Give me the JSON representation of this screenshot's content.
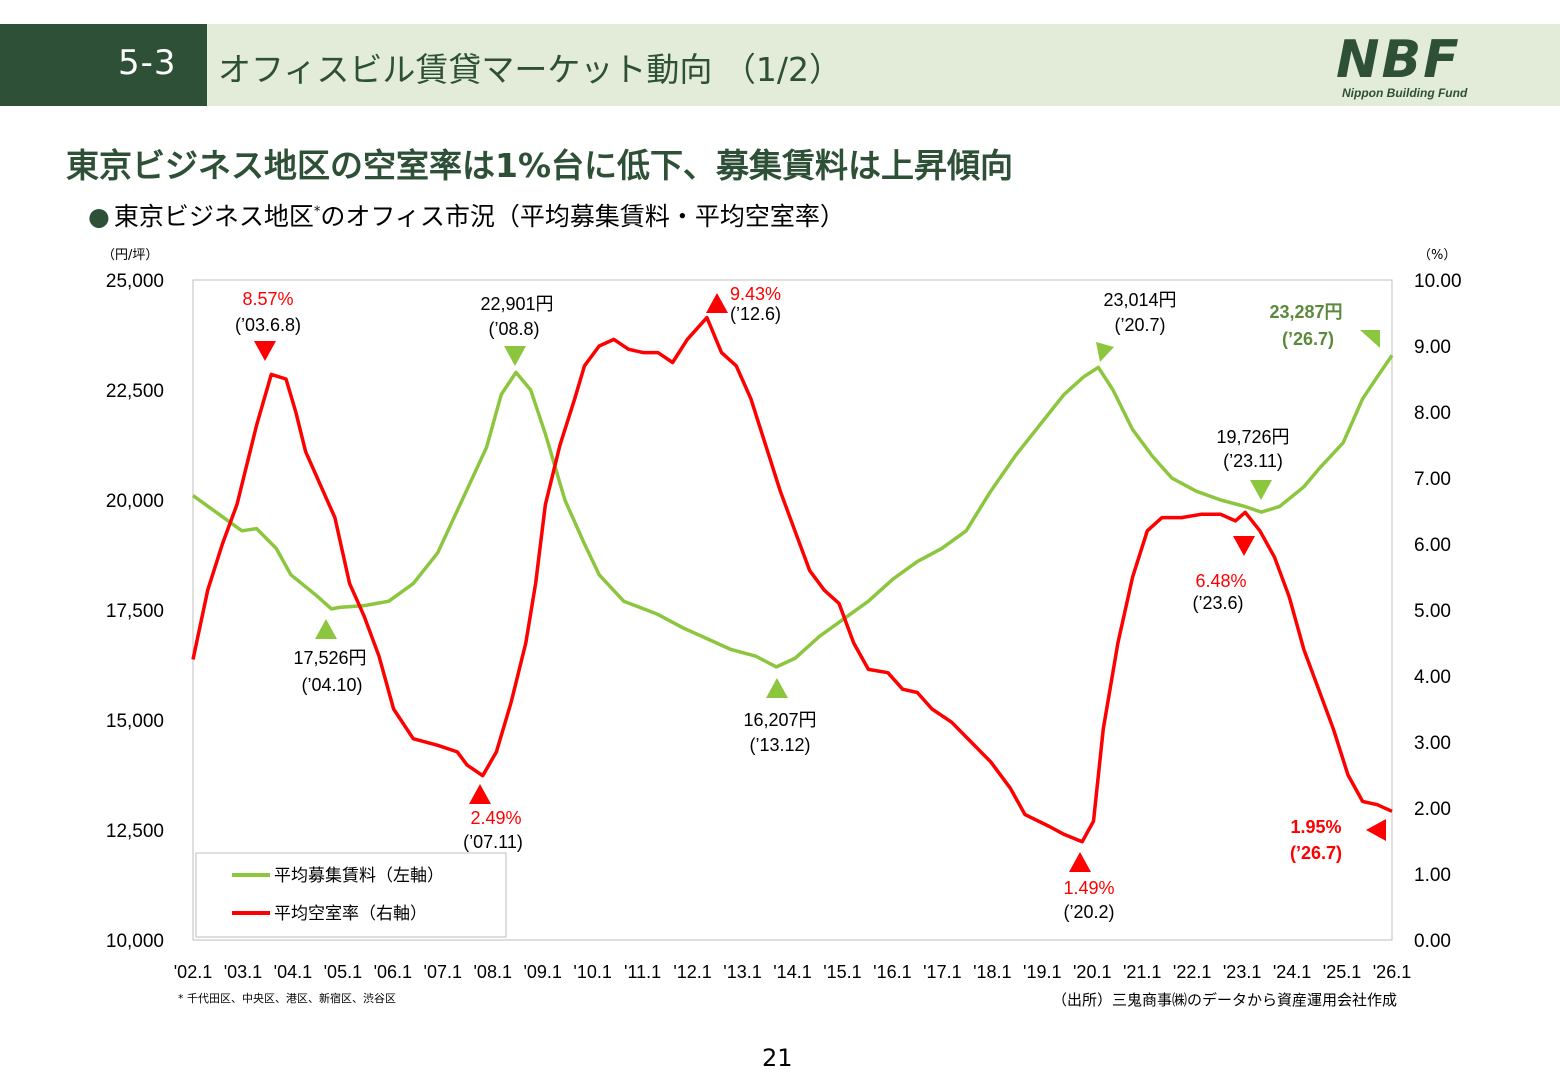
{
  "header": {
    "section": "5-3",
    "title": "オフィスビル賃貸マーケット動向 （1/2）",
    "logo_main": "NBF",
    "logo_sub": "Nippon Building Fund"
  },
  "headline": "東京ビジネス地区の空室率は1%台に低下、募集賃料は上昇傾向",
  "subheadline": {
    "bullet": "●",
    "text_before": "東京ビジネス地区",
    "sup": "*",
    "text_after": "のオフィス市況（平均募集賃料・平均空室率）"
  },
  "footnote": "* 千代田区、中央区、港区、新宿区、渋谷区",
  "source": "（出所）三鬼商事㈱のデータから資産運用会社作成",
  "page_number": "21",
  "colors": {
    "rent": "#8cc63f",
    "vacancy": "#ff0000",
    "rent_bold": "#5b8a3c",
    "dark_green": "#2d5036",
    "header_bg": "#e3ecd8"
  },
  "chart_data": {
    "type": "line",
    "x_categories": [
      "'02.1",
      "'03.1",
      "'04.1",
      "'05.1",
      "'06.1",
      "'07.1",
      "'08.1",
      "'09.1",
      "'10.1",
      "'11.1",
      "'12.1",
      "'13.1",
      "'14.1",
      "'15.1",
      "'16.1",
      "'17.1",
      "'18.1",
      "'19.1",
      "'20.1",
      "'21.1",
      "'22.1",
      "'23.1",
      "'24.1",
      "'25.1",
      "'26.1"
    ],
    "left_axis": {
      "unit": "（円/坪）",
      "ylim": [
        10000,
        25000
      ],
      "ticks": [
        "10,000",
        "12,500",
        "15,000",
        "17,500",
        "20,000",
        "22,500",
        "25,000"
      ]
    },
    "right_axis": {
      "unit": "（%）",
      "ylim": [
        0,
        10
      ],
      "ticks": [
        "0.00",
        "1.00",
        "2.00",
        "3.00",
        "4.00",
        "5.00",
        "6.00",
        "7.00",
        "8.00",
        "9.00",
        "10.00"
      ]
    },
    "legend": {
      "placement": "bottom-left",
      "rent_label": "平均募集賃料（左軸）",
      "vacancy_label": "平均空室率（右軸）"
    },
    "series": [
      {
        "name": "平均募集賃料（左軸）",
        "axis": "left",
        "points": [
          [
            2002.0,
            20100
          ],
          [
            2002.5,
            19700
          ],
          [
            2003.0,
            19300
          ],
          [
            2003.3,
            19350
          ],
          [
            2003.7,
            18900
          ],
          [
            2004.0,
            18300
          ],
          [
            2004.5,
            17850
          ],
          [
            2004.83,
            17526
          ],
          [
            2005.0,
            17560
          ],
          [
            2005.5,
            17600
          ],
          [
            2006.0,
            17700
          ],
          [
            2006.5,
            18100
          ],
          [
            2007.0,
            18800
          ],
          [
            2007.5,
            20000
          ],
          [
            2008.0,
            21200
          ],
          [
            2008.3,
            22400
          ],
          [
            2008.6,
            22901
          ],
          [
            2008.9,
            22500
          ],
          [
            2009.2,
            21500
          ],
          [
            2009.6,
            20000
          ],
          [
            2010.0,
            19000
          ],
          [
            2010.3,
            18300
          ],
          [
            2010.8,
            17700
          ],
          [
            2011.5,
            17400
          ],
          [
            2012.0,
            17100
          ],
          [
            2012.5,
            16850
          ],
          [
            2013.0,
            16600
          ],
          [
            2013.5,
            16450
          ],
          [
            2013.92,
            16207
          ],
          [
            2014.3,
            16400
          ],
          [
            2014.8,
            16900
          ],
          [
            2015.3,
            17300
          ],
          [
            2015.8,
            17700
          ],
          [
            2016.3,
            18200
          ],
          [
            2016.8,
            18600
          ],
          [
            2017.3,
            18900
          ],
          [
            2017.8,
            19300
          ],
          [
            2018.3,
            20200
          ],
          [
            2018.8,
            21000
          ],
          [
            2019.3,
            21700
          ],
          [
            2019.8,
            22400
          ],
          [
            2020.2,
            22800
          ],
          [
            2020.5,
            23014
          ],
          [
            2020.8,
            22500
          ],
          [
            2021.2,
            21600
          ],
          [
            2021.6,
            21000
          ],
          [
            2022.0,
            20500
          ],
          [
            2022.5,
            20200
          ],
          [
            2023.0,
            20000
          ],
          [
            2023.5,
            19850
          ],
          [
            2023.83,
            19726
          ],
          [
            2024.2,
            19850
          ],
          [
            2024.7,
            20300
          ],
          [
            2025.0,
            20700
          ],
          [
            2025.5,
            21300
          ],
          [
            2025.9,
            22300
          ],
          [
            2026.2,
            22800
          ],
          [
            2026.5,
            23287
          ]
        ]
      },
      {
        "name": "平均空室率（右軸）",
        "axis": "right",
        "points": [
          [
            2002.0,
            4.25
          ],
          [
            2002.3,
            5.3
          ],
          [
            2002.6,
            6.0
          ],
          [
            2002.9,
            6.6
          ],
          [
            2003.1,
            7.2
          ],
          [
            2003.3,
            7.8
          ],
          [
            2003.6,
            8.57
          ],
          [
            2003.9,
            8.5
          ],
          [
            2004.1,
            8.0
          ],
          [
            2004.3,
            7.4
          ],
          [
            2004.6,
            6.9
          ],
          [
            2004.9,
            6.4
          ],
          [
            2005.2,
            5.4
          ],
          [
            2005.5,
            4.9
          ],
          [
            2005.8,
            4.3
          ],
          [
            2006.1,
            3.5
          ],
          [
            2006.5,
            3.05
          ],
          [
            2007.0,
            2.95
          ],
          [
            2007.4,
            2.85
          ],
          [
            2007.6,
            2.65
          ],
          [
            2007.92,
            2.49
          ],
          [
            2008.2,
            2.85
          ],
          [
            2008.5,
            3.6
          ],
          [
            2008.8,
            4.5
          ],
          [
            2009.0,
            5.4
          ],
          [
            2009.2,
            6.6
          ],
          [
            2009.5,
            7.5
          ],
          [
            2009.8,
            8.2
          ],
          [
            2010.0,
            8.7
          ],
          [
            2010.3,
            9.0
          ],
          [
            2010.6,
            9.1
          ],
          [
            2010.9,
            8.95
          ],
          [
            2011.2,
            8.9
          ],
          [
            2011.5,
            8.9
          ],
          [
            2011.8,
            8.75
          ],
          [
            2012.1,
            9.1
          ],
          [
            2012.5,
            9.43
          ],
          [
            2012.8,
            8.9
          ],
          [
            2013.1,
            8.7
          ],
          [
            2013.4,
            8.2
          ],
          [
            2013.7,
            7.5
          ],
          [
            2014.0,
            6.8
          ],
          [
            2014.3,
            6.2
          ],
          [
            2014.6,
            5.6
          ],
          [
            2014.9,
            5.3
          ],
          [
            2015.2,
            5.1
          ],
          [
            2015.5,
            4.5
          ],
          [
            2015.8,
            4.1
          ],
          [
            2016.2,
            4.05
          ],
          [
            2016.5,
            3.8
          ],
          [
            2016.8,
            3.75
          ],
          [
            2017.1,
            3.5
          ],
          [
            2017.5,
            3.3
          ],
          [
            2017.9,
            3.0
          ],
          [
            2018.3,
            2.7
          ],
          [
            2018.7,
            2.3
          ],
          [
            2019.0,
            1.9
          ],
          [
            2019.5,
            1.72
          ],
          [
            2019.8,
            1.6
          ],
          [
            2020.17,
            1.49
          ],
          [
            2020.4,
            1.8
          ],
          [
            2020.6,
            3.2
          ],
          [
            2020.9,
            4.5
          ],
          [
            2021.2,
            5.5
          ],
          [
            2021.5,
            6.2
          ],
          [
            2021.8,
            6.4
          ],
          [
            2022.2,
            6.4
          ],
          [
            2022.6,
            6.45
          ],
          [
            2023.0,
            6.45
          ],
          [
            2023.3,
            6.35
          ],
          [
            2023.5,
            6.48
          ],
          [
            2023.8,
            6.2
          ],
          [
            2024.1,
            5.8
          ],
          [
            2024.4,
            5.2
          ],
          [
            2024.7,
            4.4
          ],
          [
            2025.0,
            3.8
          ],
          [
            2025.3,
            3.2
          ],
          [
            2025.6,
            2.5
          ],
          [
            2025.9,
            2.1
          ],
          [
            2026.2,
            2.05
          ],
          [
            2026.5,
            1.95
          ]
        ]
      }
    ],
    "annotations": [
      {
        "series": "vacancy",
        "value": "8.57%",
        "date": "(’03.6.8)",
        "x": 2003.6,
        "y": 8.57,
        "marker": "down"
      },
      {
        "series": "vacancy",
        "value": "2.49%",
        "date": "(’07.11)",
        "x": 2007.92,
        "y": 2.49,
        "marker": "up"
      },
      {
        "series": "vacancy",
        "value": "9.43%",
        "date": "(’12.6)",
        "x": 2012.5,
        "y": 9.43,
        "marker": "up"
      },
      {
        "series": "vacancy",
        "value": "1.49%",
        "date": "(’20.2)",
        "x": 2020.17,
        "y": 1.49,
        "marker": "up"
      },
      {
        "series": "vacancy",
        "value": "6.48%",
        "date": "(’23.6)",
        "x": 2023.5,
        "y": 6.48,
        "marker": "down"
      },
      {
        "series": "vacancy",
        "value": "1.95%",
        "date": "(’26.7)",
        "x": 2026.5,
        "y": 1.95,
        "marker": "left"
      },
      {
        "series": "rent",
        "value": "17,526円",
        "date": "(’04.10)",
        "x": 2004.83,
        "y": 17526,
        "marker": "up"
      },
      {
        "series": "rent",
        "value": "22,901円",
        "date": "(’08.8)",
        "x": 2008.6,
        "y": 22901,
        "marker": "down"
      },
      {
        "series": "rent",
        "value": "16,207円",
        "date": "(’13.12)",
        "x": 2013.92,
        "y": 16207,
        "marker": "up"
      },
      {
        "series": "rent",
        "value": "23,014円",
        "date": "(’20.7)",
        "x": 2020.5,
        "y": 23014,
        "marker": "down"
      },
      {
        "series": "rent",
        "value": "19,726円",
        "date": "(’23.11)",
        "x": 2023.83,
        "y": 19726,
        "marker": "down"
      },
      {
        "series": "rent",
        "value": "23,287円",
        "date": "(’26.7)",
        "x": 2026.5,
        "y": 23287,
        "marker": "down"
      }
    ]
  }
}
